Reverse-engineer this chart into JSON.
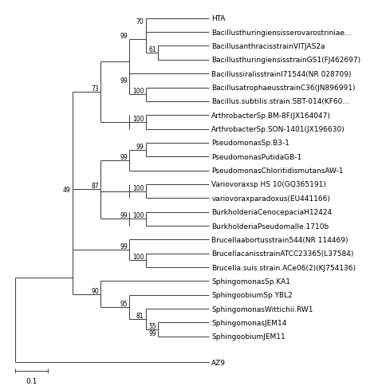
{
  "taxa": [
    "HTA",
    "Bacillusthuringiensisserovarostriniae...",
    "BacillusanthracisstrainVITJAS2a",
    "BacillusthuringiensisstrainGS1(FJ462697)",
    "BacillussiralisstrainI71544(NR 028709)",
    "BacillusatrophaeusstrainC36(JN896991)",
    "Bacillus.subtilis.strain.SBT-014(KF60...",
    "ArthrobacterSp.BM-8F(JX164047)",
    "ArthrobacterSp.SON-1401(JX196630)",
    "PseudomonasSp.B3-1",
    "PseudomonasPutidaGB-1",
    "PseudomonasChloritidismutansAW-1",
    "Variovoraxsp.HS 10(GQ365191)",
    "variovoraxparadoxus(EU441166)",
    "BurkholderiaCenocepaciaH12424",
    "BurkholderiaPseudomalle.1710b",
    "Brucellaabortusstrain544(NR 114469)",
    "BrucellacanisstrainATCC23365(L37584)",
    "Brucella.suis.strain.ACe06(2)(KJ754136)",
    "SphingomonasSp.KA1",
    "SphingoobiumSp.YBL2",
    "SphingomonasWittichii.RW1",
    "SphingomonasJEM14",
    "SphingoobiumJEM11"
  ],
  "outgroup": "AZ9",
  "scale_bar_label": "0.1",
  "line_color": "#444444",
  "text_color": "#000000",
  "bg_color": "#ffffff",
  "font_size": 6.5,
  "bootstrap_font_size": 5.5,
  "lw": 0.75
}
